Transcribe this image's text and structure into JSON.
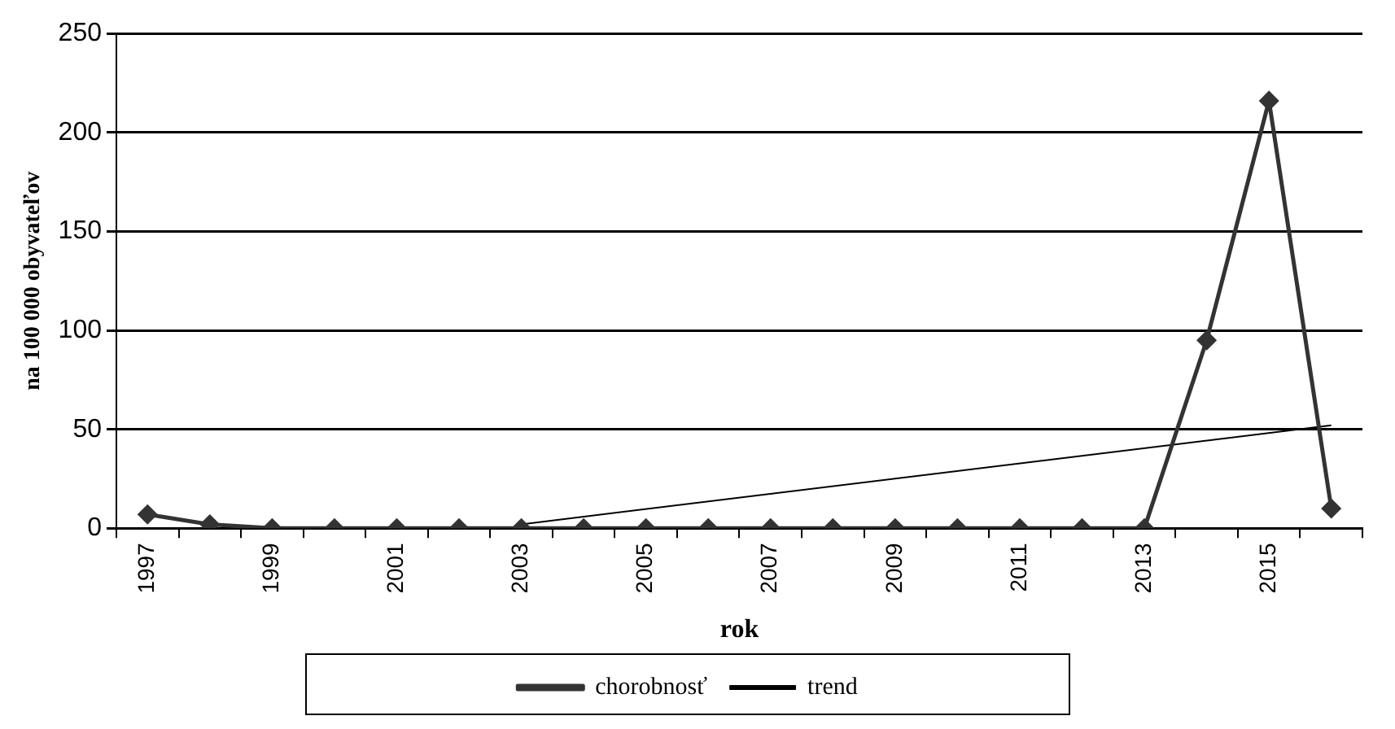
{
  "chart_data": {
    "type": "line",
    "xlabel": "rok",
    "ylabel": "na 100 000 obyvateľov",
    "categories": [
      "1997",
      null,
      "1999",
      null,
      "2001",
      null,
      "2003",
      null,
      "2005",
      null,
      "2007",
      null,
      "2009",
      null,
      "2011",
      null,
      "2013",
      null,
      "2015",
      null
    ],
    "series": [
      {
        "name": "chorobnosť",
        "color": "#333333",
        "marker": "diamond",
        "values": [
          7,
          2,
          0,
          0,
          0,
          0,
          0,
          0,
          0,
          0,
          0,
          0,
          0,
          0,
          0,
          0,
          0,
          95,
          216,
          10
        ]
      },
      {
        "name": "trend",
        "color": "#000000",
        "marker": "none",
        "values": [
          null,
          null,
          null,
          null,
          null,
          null,
          2,
          null,
          null,
          null,
          null,
          null,
          null,
          null,
          null,
          null,
          null,
          null,
          null,
          52
        ]
      }
    ],
    "ylim": [
      0,
      250
    ],
    "yticks": [
      0,
      50,
      100,
      150,
      200,
      250
    ],
    "grid": "y",
    "legend": "bottom"
  }
}
